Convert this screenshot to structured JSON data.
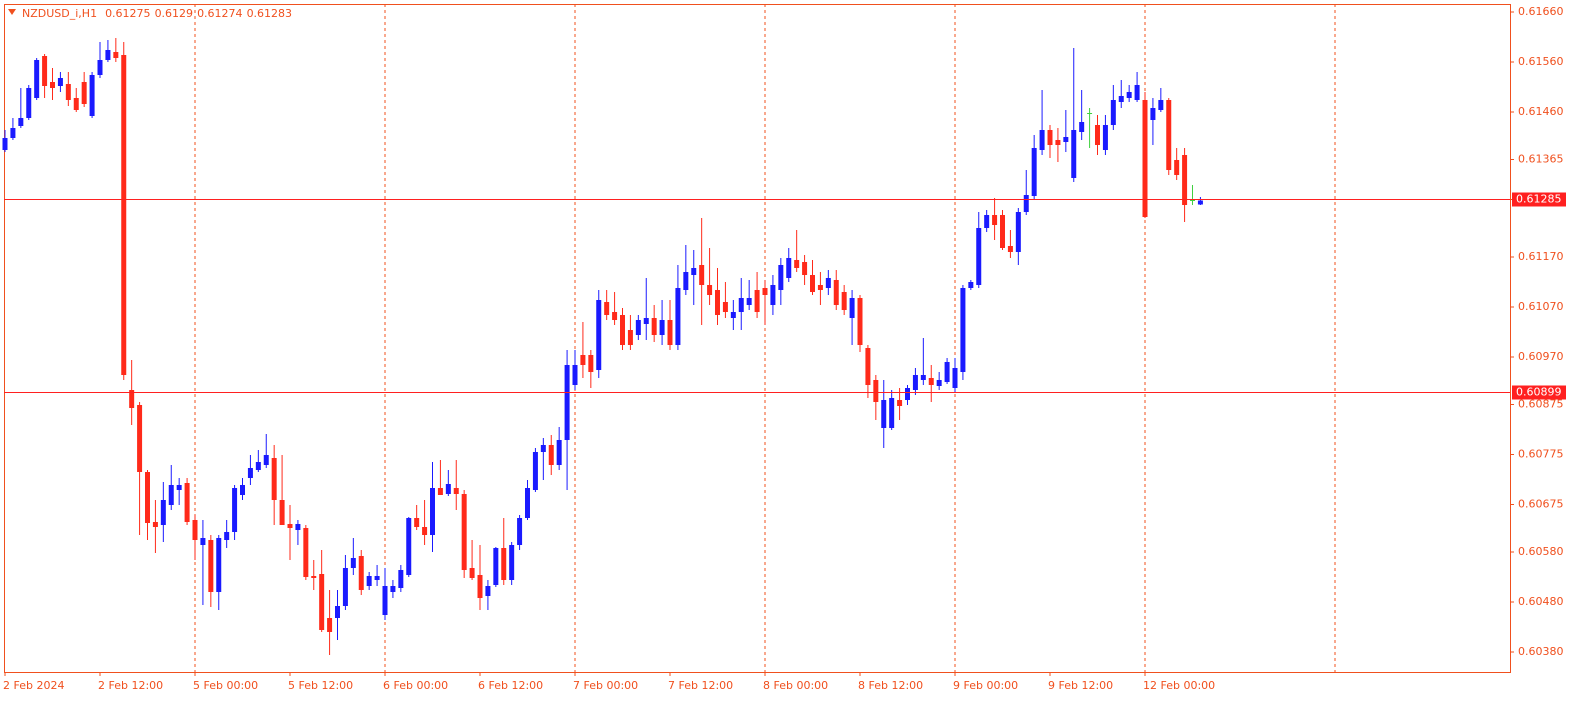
{
  "chart_data": {
    "type": "candlestick",
    "title": "NZDUSD_i,H1",
    "categories": [
      "2 Feb 2024",
      null,
      null,
      null,
      null,
      null,
      null,
      null,
      null,
      null,
      null,
      null,
      "2 Feb 12:00",
      null,
      null,
      null,
      null,
      null,
      null,
      null,
      null,
      null,
      null,
      null,
      "5 Feb 00:00",
      null,
      null,
      null,
      null,
      null,
      null,
      null,
      null,
      null,
      null,
      null,
      "5 Feb 12:00",
      null,
      null,
      null,
      null,
      null,
      null,
      null,
      null,
      null,
      null,
      null,
      "6 Feb 00:00",
      null,
      null,
      null,
      null,
      null,
      null,
      null,
      null,
      null,
      null,
      null,
      "6 Feb 12:00",
      null,
      null,
      null,
      null,
      null,
      null,
      null,
      null,
      null,
      null,
      null,
      "7 Feb 00:00",
      null,
      null,
      null,
      null,
      null,
      null,
      null,
      null,
      null,
      null,
      null,
      "7 Feb 12:00",
      null,
      null,
      null,
      null,
      null,
      null,
      null,
      null,
      null,
      null,
      null,
      "8 Feb 00:00",
      null,
      null,
      null,
      null,
      null,
      null,
      null,
      null,
      null,
      null,
      null,
      "8 Feb 12:00",
      null,
      null,
      null,
      null,
      null,
      null,
      null,
      null,
      null,
      null,
      null,
      "9 Feb 00:00",
      null,
      null,
      null,
      null,
      null,
      null,
      null,
      null,
      null,
      null,
      null,
      "9 Feb 12:00",
      null,
      null,
      null,
      null,
      null,
      null,
      null,
      null,
      null,
      null,
      null,
      "12 Feb 00:00",
      null,
      null,
      null,
      null,
      null,
      null,
      null
    ],
    "open": [
      0.61384,
      0.61408,
      0.61432,
      0.61448,
      0.61488,
      0.61572,
      0.6152,
      0.61512,
      0.61516,
      0.61488,
      0.6152,
      0.61452,
      0.61534,
      0.61564,
      0.6158,
      0.61574,
      0.60904,
      0.60874,
      0.6074,
      0.6064,
      0.60634,
      0.60674,
      0.60704,
      0.60718,
      0.60644,
      0.60594,
      0.60604,
      0.605,
      0.60604,
      0.6062,
      0.60694,
      0.60728,
      0.60744,
      0.60754,
      0.60768,
      0.60684,
      0.60636,
      0.60624,
      0.60628,
      0.60532,
      0.60536,
      0.60448,
      0.60448,
      0.60472,
      0.60548,
      0.60572,
      0.60512,
      0.60524,
      0.60454,
      0.605,
      0.60508,
      0.60534,
      0.60648,
      0.6063,
      0.60614,
      0.60708,
      0.60696,
      0.60708,
      0.60696,
      0.60548,
      0.60534,
      0.60492,
      0.60514,
      0.60588,
      0.60524,
      0.60594,
      0.60648,
      0.60704,
      0.6078,
      0.60794,
      0.60754,
      0.60804,
      0.60914,
      0.60974,
      0.60974,
      0.60944,
      0.6108,
      0.6106,
      0.61054,
      0.61024,
      0.61014,
      0.61036,
      0.61048,
      0.61014,
      0.61044,
      0.60994,
      0.61104,
      0.61134,
      0.61154,
      0.61114,
      0.61104,
      0.6108,
      0.61048,
      0.6106,
      0.61074,
      0.61104,
      0.61108,
      0.61074,
      0.61104,
      0.61128,
      0.61164,
      0.6116,
      0.61134,
      0.61114,
      0.61108,
      0.61124,
      0.611,
      0.61048,
      0.61088,
      0.60988,
      0.60924,
      0.60828,
      0.60828,
      0.60884,
      0.60884,
      0.60904,
      0.60924,
      0.60928,
      0.60912,
      0.6092,
      0.60908,
      0.6094,
      0.61108,
      0.61114,
      0.61228,
      0.61254,
      0.61254,
      0.61192,
      0.6118,
      0.6126,
      0.61292,
      0.61384,
      0.61424,
      0.61404,
      0.614,
      0.61328,
      0.6142,
      0.61458,
      0.61434,
      0.61384,
      0.61434,
      0.6148,
      0.61488,
      0.61484,
      0.61484,
      0.61444,
      0.61464,
      0.61484,
      0.61364,
      0.61374,
      0.61284,
      0.61275
    ],
    "high": [
      0.61424,
      0.61448,
      0.61508,
      0.61514,
      0.61568,
      0.61576,
      0.61548,
      0.6154,
      0.6154,
      0.61508,
      0.6154,
      0.6154,
      0.616,
      0.61604,
      0.61608,
      0.616,
      0.60964,
      0.6088,
      0.60744,
      0.60684,
      0.6072,
      0.60754,
      0.60728,
      0.60728,
      0.60654,
      0.60644,
      0.60614,
      0.60614,
      0.60644,
      0.60714,
      0.60728,
      0.60774,
      0.60784,
      0.60816,
      0.60794,
      0.60774,
      0.60674,
      0.60644,
      0.60634,
      0.60564,
      0.60584,
      0.60504,
      0.60504,
      0.60574,
      0.60608,
      0.60584,
      0.6054,
      0.60554,
      0.60548,
      0.60524,
      0.60554,
      0.6065,
      0.60674,
      0.60684,
      0.6076,
      0.60764,
      0.60744,
      0.60764,
      0.60704,
      0.60604,
      0.60594,
      0.60524,
      0.6059,
      0.60648,
      0.606,
      0.60654,
      0.60724,
      0.60788,
      0.60808,
      0.60814,
      0.6083,
      0.60984,
      0.60984,
      0.6104,
      0.60984,
      0.61104,
      0.61104,
      0.611,
      0.61068,
      0.61054,
      0.61054,
      0.61128,
      0.61074,
      0.61084,
      0.61084,
      0.61154,
      0.61194,
      0.61184,
      0.61248,
      0.61188,
      0.61148,
      0.6112,
      0.61084,
      0.61128,
      0.61124,
      0.6114,
      0.61124,
      0.61134,
      0.61168,
      0.61188,
      0.61224,
      0.61174,
      0.61164,
      0.6114,
      0.61144,
      0.61144,
      0.61114,
      0.61104,
      0.61094,
      0.60994,
      0.60934,
      0.60924,
      0.60904,
      0.60908,
      0.60914,
      0.60948,
      0.61008,
      0.60954,
      0.6094,
      0.60968,
      0.60968,
      0.61114,
      0.61124,
      0.6126,
      0.61264,
      0.61288,
      0.61264,
      0.61224,
      0.61268,
      0.61344,
      0.61414,
      0.61504,
      0.61434,
      0.61428,
      0.61464,
      0.61588,
      0.61504,
      0.61468,
      0.61454,
      0.61454,
      0.61514,
      0.61524,
      0.61514,
      0.6154,
      0.615,
      0.61488,
      0.61508,
      0.61488,
      0.61388,
      0.61388,
      0.61314,
      0.6129
    ],
    "low": [
      0.6138,
      0.61404,
      0.61428,
      0.61444,
      0.61484,
      0.61488,
      0.61484,
      0.615,
      0.61472,
      0.6146,
      0.6147,
      0.61448,
      0.61528,
      0.6156,
      0.6156,
      0.60924,
      0.60834,
      0.60614,
      0.60604,
      0.60578,
      0.606,
      0.60664,
      0.60674,
      0.60634,
      0.60564,
      0.60474,
      0.6047,
      0.60464,
      0.60588,
      0.60604,
      0.60684,
      0.60714,
      0.6074,
      0.60748,
      0.60634,
      0.60634,
      0.60564,
      0.60594,
      0.60524,
      0.60504,
      0.6042,
      0.60374,
      0.60404,
      0.60464,
      0.60534,
      0.60494,
      0.60504,
      0.60512,
      0.60444,
      0.60488,
      0.605,
      0.6053,
      0.60624,
      0.60594,
      0.6058,
      0.60694,
      0.60692,
      0.60664,
      0.60528,
      0.60524,
      0.60464,
      0.60464,
      0.6051,
      0.60514,
      0.60514,
      0.60584,
      0.60644,
      0.607,
      0.60724,
      0.60734,
      0.60744,
      0.60704,
      0.60904,
      0.60928,
      0.60908,
      0.60928,
      0.61044,
      0.61034,
      0.60984,
      0.60984,
      0.61004,
      0.61004,
      0.61,
      0.60994,
      0.60984,
      0.60984,
      0.61094,
      0.61074,
      0.61034,
      0.61074,
      0.61034,
      0.61048,
      0.61024,
      0.61024,
      0.61064,
      0.61048,
      0.61034,
      0.61054,
      0.61074,
      0.6112,
      0.6114,
      0.61114,
      0.61094,
      0.61074,
      0.61094,
      0.61064,
      0.61054,
      0.60994,
      0.6098,
      0.60888,
      0.60844,
      0.60788,
      0.60824,
      0.60844,
      0.60874,
      0.60894,
      0.60914,
      0.6088,
      0.60904,
      0.60916,
      0.609,
      0.60924,
      0.61104,
      0.61108,
      0.6122,
      0.61204,
      0.61184,
      0.61168,
      0.61154,
      0.61254,
      0.61284,
      0.61374,
      0.61368,
      0.6136,
      0.6138,
      0.6132,
      0.61404,
      0.61388,
      0.61374,
      0.61374,
      0.61424,
      0.61468,
      0.6148,
      0.6148,
      0.61248,
      0.61394,
      0.6146,
      0.61334,
      0.61324,
      0.6124,
      0.61274,
      0.61274
    ],
    "close": [
      0.61408,
      0.61428,
      0.61448,
      0.61508,
      0.61564,
      0.61512,
      0.61508,
      0.61528,
      0.61484,
      0.61464,
      0.61476,
      0.61534,
      0.61564,
      0.61584,
      0.61568,
      0.60934,
      0.60868,
      0.6074,
      0.60638,
      0.6063,
      0.60684,
      0.60714,
      0.60714,
      0.6064,
      0.60604,
      0.60608,
      0.605,
      0.60608,
      0.6062,
      0.60708,
      0.60714,
      0.60748,
      0.6076,
      0.60774,
      0.60684,
      0.60634,
      0.60628,
      0.60636,
      0.6053,
      0.60528,
      0.60424,
      0.6042,
      0.60472,
      0.60548,
      0.60568,
      0.60504,
      0.60532,
      0.60532,
      0.60512,
      0.60512,
      0.60544,
      0.60648,
      0.6063,
      0.60614,
      0.60708,
      0.60694,
      0.60716,
      0.60696,
      0.60544,
      0.60528,
      0.60488,
      0.60512,
      0.60588,
      0.60524,
      0.60594,
      0.60648,
      0.60708,
      0.6078,
      0.60794,
      0.60754,
      0.60804,
      0.60954,
      0.60954,
      0.60954,
      0.6094,
      0.61084,
      0.61054,
      0.61044,
      0.60994,
      0.60994,
      0.61044,
      0.61048,
      0.61014,
      0.61044,
      0.60994,
      0.61108,
      0.6114,
      0.61148,
      0.61114,
      0.61094,
      0.61054,
      0.6106,
      0.6106,
      0.61088,
      0.61088,
      0.6106,
      0.61094,
      0.61114,
      0.61154,
      0.61168,
      0.61148,
      0.61134,
      0.611,
      0.61104,
      0.61128,
      0.61074,
      0.61064,
      0.61088,
      0.60994,
      0.60914,
      0.6088,
      0.60884,
      0.60888,
      0.60872,
      0.60908,
      0.60934,
      0.60934,
      0.60914,
      0.60924,
      0.6096,
      0.60948,
      0.61108,
      0.6112,
      0.61228,
      0.61254,
      0.61234,
      0.61188,
      0.6118,
      0.6126,
      0.61294,
      0.61388,
      0.61424,
      0.61394,
      0.61394,
      0.6141,
      0.61424,
      0.6144,
      0.61458,
      0.61394,
      0.61434,
      0.61484,
      0.61492,
      0.615,
      0.61514,
      0.6125,
      0.61468,
      0.61484,
      0.61344,
      0.61334,
      0.61274,
      0.61284,
      0.61283
    ],
    "up_color": "#1a1aff",
    "down_color": "#ff2a1a",
    "doji_color": "#40d040",
    "ylim": [
      0.6034,
      0.61676
    ],
    "yticks": [
      {
        "value": 0.6166,
        "label": "0.61660"
      },
      {
        "value": 0.6156,
        "label": "0.61560"
      },
      {
        "value": 0.6146,
        "label": "0.61460"
      },
      0.61365,
      0.61285,
      {
        "value": 0.6117,
        "label": "0.61170"
      },
      {
        "value": 0.6107,
        "label": "0.61070"
      },
      {
        "value": 0.6097,
        "label": "0.60970"
      },
      0.60875,
      0.60775,
      0.60675,
      {
        "value": 0.6058,
        "label": "0.60580"
      },
      {
        "value": 0.6048,
        "label": "0.60480"
      },
      {
        "value": 0.6038,
        "label": "0.60380"
      }
    ],
    "price_lines": [
      0.61285,
      0.60899
    ],
    "price_line_color": "#ff2020",
    "grid": true
  }
}
